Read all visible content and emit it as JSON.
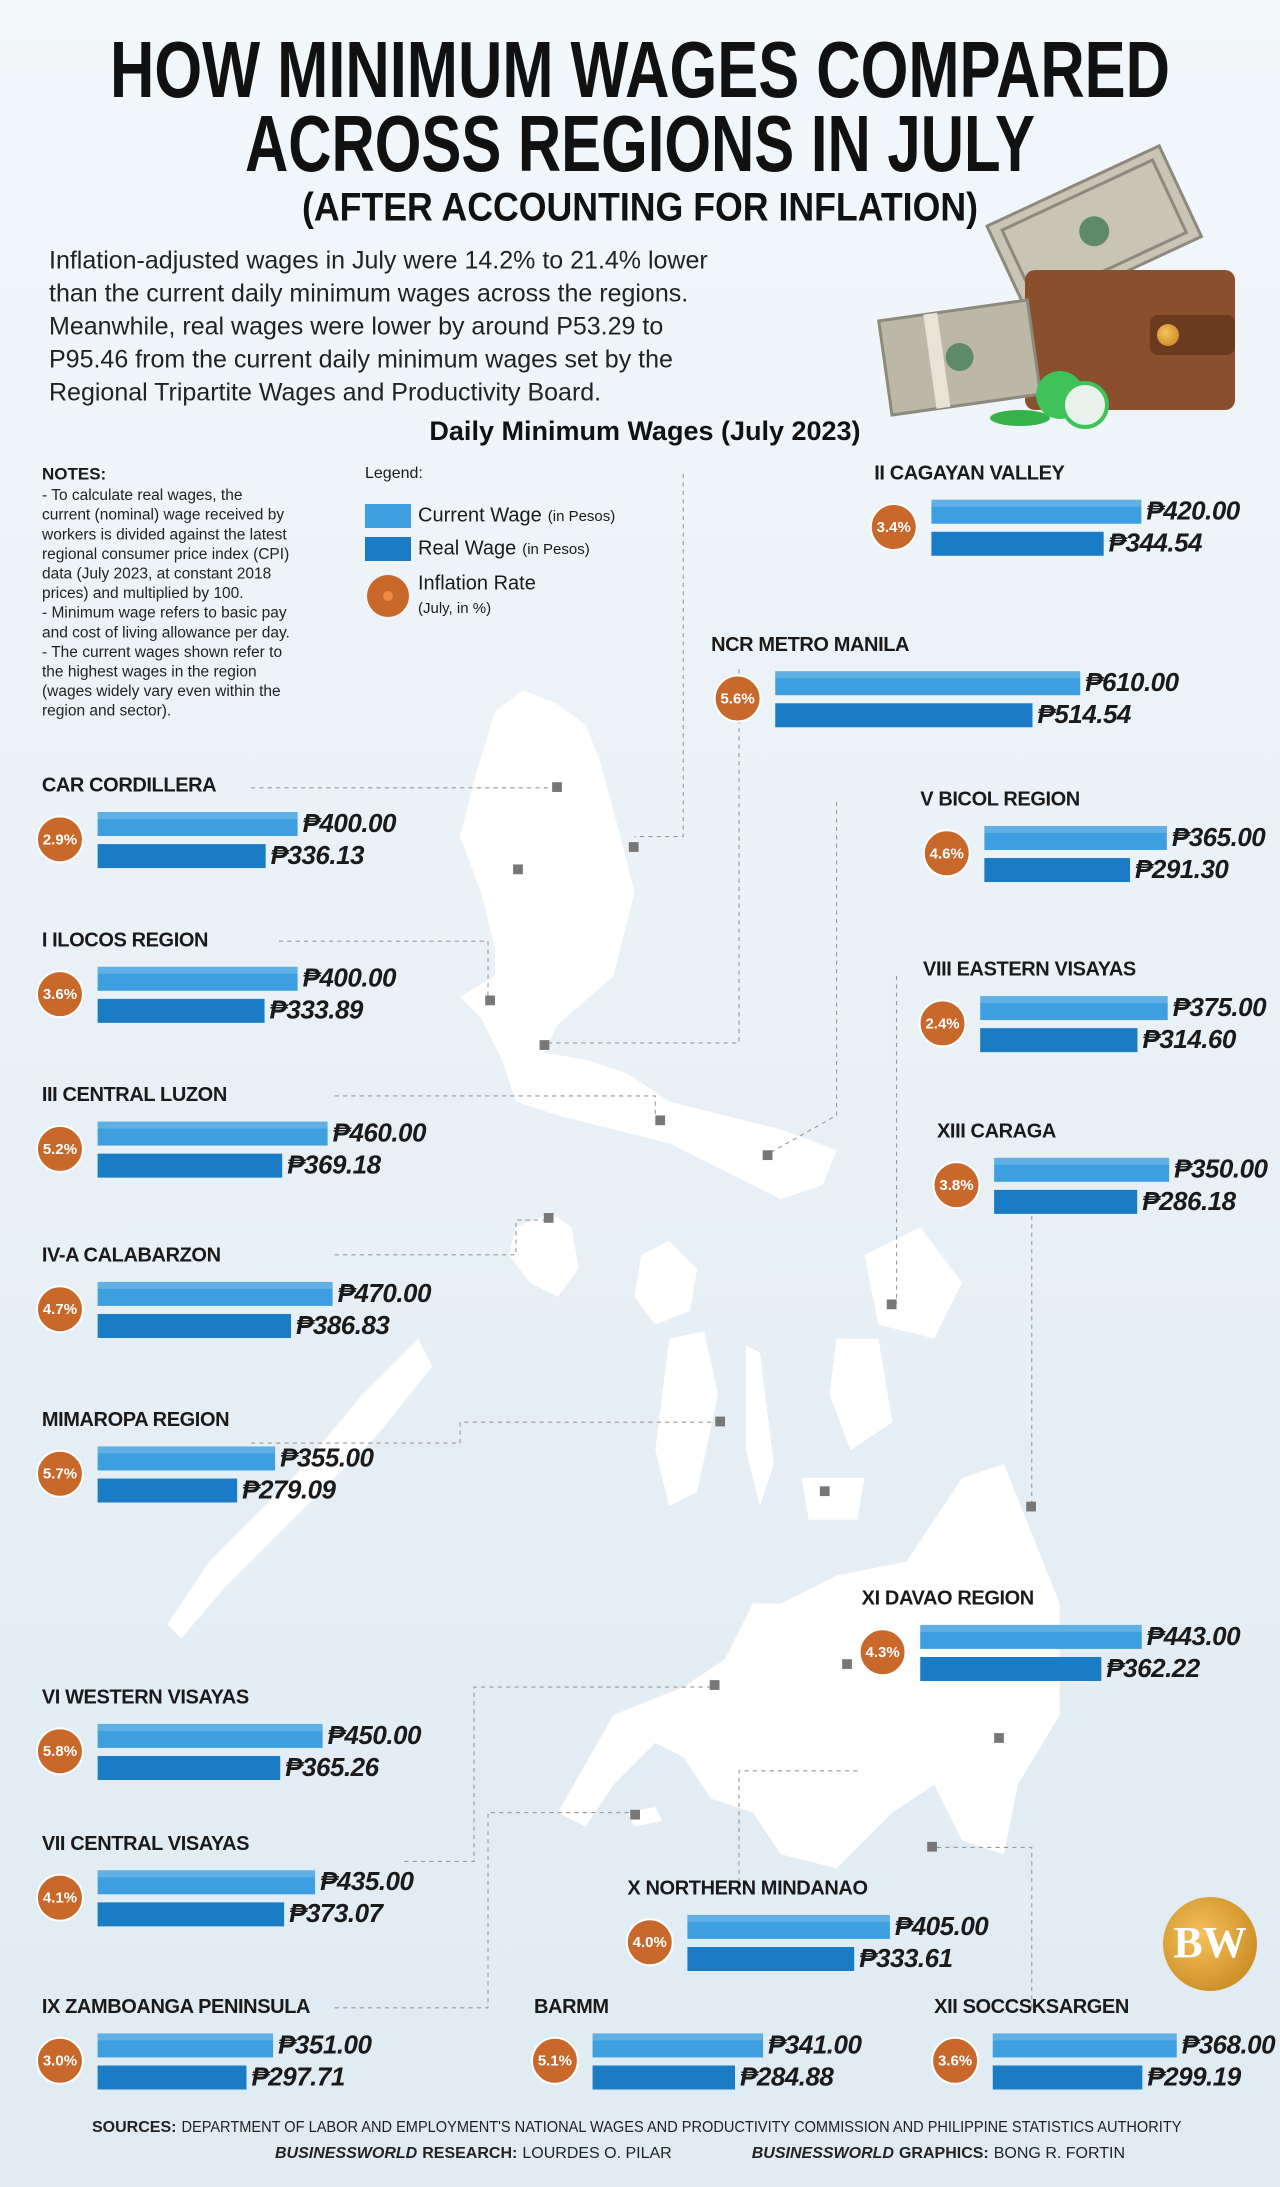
{
  "title_lines": [
    "HOW MINIMUM WAGES COMPARED",
    "ACROSS REGIONS IN JULY"
  ],
  "subtitle": "(AFTER ACCOUNTING FOR INFLATION)",
  "intro_lines": [
    "Inflation-adjusted wages in July were 14.2% to 21.4% lower",
    "than the current daily minimum wages across the regions.",
    "Meanwhile, real wages were lower by around P53.29 to",
    "P95.46 from the current daily minimum wages set by the",
    "Regional Tripartite Wages and Productivity Board."
  ],
  "notes": {
    "heading": "NOTES:",
    "lines": [
      "- To calculate real wages, the",
      "current (nominal) wage received by",
      "workers is divided against the latest",
      "regional consumer price index (CPI)",
      "data (July 2023, at constant 2018",
      "prices) and multiplied by 100.",
      "- Minimum wage refers to basic pay",
      "and cost of living allowance per day.",
      "- The current wages shown refer to",
      "the highest wages in the region",
      "(wages widely vary even within the",
      "region and sector)."
    ]
  },
  "logo": "BW",
  "sources": {
    "label": "SOURCES:",
    "text": "DEPARTMENT OF LABOR AND EMPLOYMENT'S NATIONAL WAGES AND PRODUCTIVITY COMMISSION AND PHILIPPINE STATISTICS AUTHORITY"
  },
  "credits": [
    {
      "label": "BUSINESSWORLD",
      "role": "RESEARCH:",
      "name": "LOURDES O. PILAR"
    },
    {
      "label": "BUSINESSWORLD",
      "role": "GRAPHICS:",
      "name": "BONG R. FORTIN"
    }
  ],
  "chart_data": {
    "type": "bar",
    "title": "Daily Minimum Wages (July 2023)",
    "legend_title": "Legend:",
    "categories": [
      "II CAGAYAN VALLEY",
      "NCR METRO MANILA",
      "CAR CORDILLERA",
      "I ILOCOS REGION",
      "III CENTRAL LUZON",
      "IV-A CALABARZON",
      "MIMAROPA REGION",
      "VI WESTERN VISAYAS",
      "VII CENTRAL VISAYAS",
      "IX ZAMBOANGA PENINSULA",
      "V BICOL REGION",
      "VIII EASTERN VISAYAS",
      "XIII CARAGA",
      "XI DAVAO REGION",
      "X NORTHERN MINDANAO",
      "BARMM",
      "XII SOCCSKSARGEN"
    ],
    "series": [
      {
        "name": "Current Wage",
        "unit": "(in Pesos)",
        "color": "#3d9fe0",
        "values": [
          420,
          610,
          400,
          400,
          460,
          470,
          355,
          450,
          435,
          351,
          365,
          375,
          350,
          443,
          405,
          341,
          368
        ],
        "value_labels": [
          "₱420.00",
          "₱610.00",
          "₱400.00",
          "₱400.00",
          "₱460.00",
          "₱470.00",
          "₱355.00",
          "₱450.00",
          "₱435.00",
          "₱351.00",
          "₱365.00",
          "₱375.00",
          "₱350.00",
          "₱443.00",
          "₱405.00",
          "₱341.00",
          "₱368.00"
        ]
      },
      {
        "name": "Real Wage",
        "unit": "(in Pesos)",
        "color": "#1b7cc6",
        "values": [
          344.54,
          514.54,
          336.13,
          333.89,
          369.18,
          386.83,
          279.09,
          365.26,
          373.07,
          297.71,
          291.3,
          314.6,
          286.18,
          362.22,
          333.61,
          284.88,
          299.19
        ],
        "value_labels": [
          "₱344.54",
          "₱514.54",
          "₱336.13",
          "₱333.89",
          "₱369.18",
          "₱386.83",
          "₱279.09",
          "₱365.26",
          "₱373.07",
          "₱297.71",
          "₱291.30",
          "₱314.60",
          "₱286.18",
          "₱362.22",
          "₱333.61",
          "₱284.88",
          "₱299.19"
        ]
      },
      {
        "name": "Inflation Rate",
        "unit": "(July, in %)",
        "color": "#c8692b",
        "values": [
          3.4,
          5.6,
          2.9,
          3.6,
          5.2,
          4.7,
          5.7,
          5.8,
          4.1,
          3.0,
          4.6,
          2.4,
          3.8,
          4.3,
          4.0,
          5.1,
          3.6
        ],
        "value_labels": [
          "3.4%",
          "5.6%",
          "2.9%",
          "3.6%",
          "5.2%",
          "4.7%",
          "5.7%",
          "5.8%",
          "4.1%",
          "3.0%",
          "4.6%",
          "2.4%",
          "3.8%",
          "4.3%",
          "4.0%",
          "5.1%",
          "3.6%"
        ]
      }
    ]
  }
}
